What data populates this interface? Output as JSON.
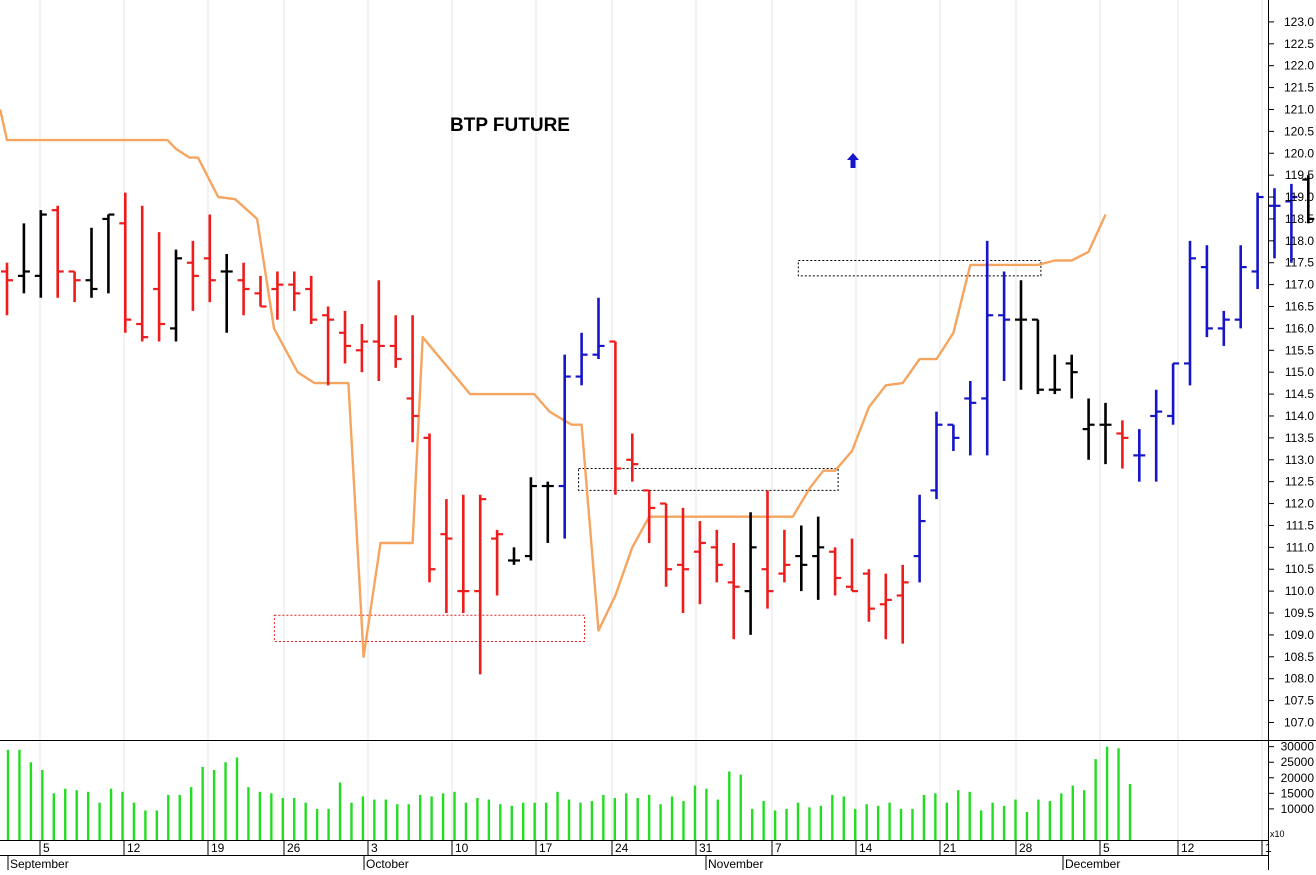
{
  "chart_data": {
    "type": "ohlc",
    "title": "BTP FUTURE",
    "price_axis": {
      "ylim": [
        106.6,
        123.5
      ],
      "ticks": [
        107.0,
        107.5,
        108.0,
        108.5,
        109.0,
        109.5,
        110.0,
        110.5,
        111.0,
        111.5,
        112.0,
        112.5,
        113.0,
        113.5,
        114.0,
        114.5,
        115.0,
        115.5,
        116.0,
        116.5,
        117.0,
        117.5,
        118.0,
        118.5,
        119.0,
        119.5,
        120.0,
        120.5,
        121.0,
        121.5,
        122.0,
        122.5,
        123.0
      ],
      "tick_labels": [
        "107.0",
        "107.5",
        "108.0",
        "108.5",
        "109.0",
        "109.5",
        "110.0",
        "110.5",
        "111.0",
        "111.5",
        "112.0",
        "112.5",
        "113.0",
        "113.5",
        "114.0",
        "114.5",
        "115.0",
        "115.5",
        "116.0",
        "116.5",
        "117.0",
        "117.5",
        "118.0",
        "118.5",
        "119.0",
        "119.5",
        "120.0",
        "120.5",
        "121.0",
        "121.5",
        "122.0",
        "122.5",
        "123.0"
      ]
    },
    "volume_axis": {
      "ylim": [
        0,
        31500
      ],
      "ticks": [
        10000,
        15000,
        20000,
        25000,
        30000
      ],
      "tick_labels": [
        "10000",
        "15000",
        "20000",
        "25000",
        "30000"
      ],
      "multiplier_label": "x10"
    },
    "date_axis": {
      "day_labels": [
        "5",
        "12",
        "19",
        "26",
        "3",
        "10",
        "17",
        "24",
        "31",
        "7",
        "14",
        "21",
        "28",
        "5",
        "12",
        "1"
      ],
      "month_labels": [
        "September",
        "October",
        "November",
        "December"
      ]
    },
    "colors": {
      "down": "#ee1c1c",
      "up": "#1616c8",
      "neutral": "#000000",
      "trailing_line": "#f5a560",
      "volume": "#22dd22",
      "support_box_red": "#ee1c1c",
      "support_box_black": "#000000"
    },
    "signal": {
      "type": "up-arrow",
      "bar_index": 49,
      "price": 119.8,
      "color": "#1616c8"
    },
    "boxes": [
      {
        "color": "red",
        "start_index": 16,
        "end_index": 34,
        "low": 108.85,
        "high": 109.45
      },
      {
        "color": "black",
        "start_index": 34,
        "end_index": 49,
        "low": 112.3,
        "high": 112.8
      },
      {
        "color": "black",
        "start_index": 47,
        "end_index": 61,
        "low": 117.2,
        "high": 117.55
      }
    ],
    "bars": [
      {
        "o": 117.3,
        "h": 117.5,
        "l": 116.3,
        "c": 117.1,
        "color": "red"
      },
      {
        "o": 117.2,
        "h": 118.4,
        "l": 116.8,
        "c": 117.3,
        "color": "black"
      },
      {
        "o": 117.2,
        "h": 118.7,
        "l": 116.7,
        "c": 118.6,
        "color": "black"
      },
      {
        "o": 118.7,
        "h": 118.8,
        "l": 116.7,
        "c": 117.3,
        "color": "red"
      },
      {
        "o": 117.3,
        "h": 117.3,
        "l": 116.6,
        "c": 117.1,
        "color": "red"
      },
      {
        "o": 117.1,
        "h": 118.3,
        "l": 116.7,
        "c": 116.9,
        "color": "black"
      },
      {
        "o": 118.5,
        "h": 118.6,
        "l": 116.8,
        "c": 118.6,
        "color": "black"
      },
      {
        "o": 118.4,
        "h": 119.1,
        "l": 115.9,
        "c": 116.2,
        "color": "red"
      },
      {
        "o": 116.1,
        "h": 118.8,
        "l": 115.7,
        "c": 115.8,
        "color": "red"
      },
      {
        "o": 116.9,
        "h": 118.2,
        "l": 115.7,
        "c": 116.1,
        "color": "red"
      },
      {
        "o": 116.0,
        "h": 117.8,
        "l": 115.7,
        "c": 117.6,
        "color": "black"
      },
      {
        "o": 117.5,
        "h": 118.0,
        "l": 116.4,
        "c": 117.2,
        "color": "red"
      },
      {
        "o": 117.6,
        "h": 118.6,
        "l": 116.6,
        "c": 117.1,
        "color": "red"
      },
      {
        "o": 117.3,
        "h": 117.7,
        "l": 115.9,
        "c": 117.3,
        "color": "black"
      },
      {
        "o": 117.1,
        "h": 117.5,
        "l": 116.3,
        "c": 116.9,
        "color": "red"
      },
      {
        "o": 116.8,
        "h": 117.2,
        "l": 116.5,
        "c": 116.5,
        "color": "red"
      },
      {
        "o": 116.9,
        "h": 117.3,
        "l": 116.2,
        "c": 117.0,
        "color": "red"
      },
      {
        "o": 117.0,
        "h": 117.3,
        "l": 116.4,
        "c": 116.8,
        "color": "red"
      },
      {
        "o": 116.9,
        "h": 117.2,
        "l": 116.1,
        "c": 116.2,
        "color": "red"
      },
      {
        "o": 116.3,
        "h": 116.5,
        "l": 114.7,
        "c": 116.2,
        "color": "red"
      },
      {
        "o": 115.9,
        "h": 116.4,
        "l": 115.2,
        "c": 115.6,
        "color": "red"
      },
      {
        "o": 115.5,
        "h": 116.1,
        "l": 115.0,
        "c": 115.7,
        "color": "red"
      },
      {
        "o": 115.7,
        "h": 117.1,
        "l": 114.8,
        "c": 115.6,
        "color": "red"
      },
      {
        "o": 115.6,
        "h": 116.3,
        "l": 115.1,
        "c": 115.3,
        "color": "red"
      },
      {
        "o": 114.4,
        "h": 116.3,
        "l": 113.4,
        "c": 114.0,
        "color": "red"
      },
      {
        "o": 113.5,
        "h": 113.6,
        "l": 110.2,
        "c": 110.5,
        "color": "red"
      },
      {
        "o": 111.3,
        "h": 112.1,
        "l": 109.5,
        "c": 111.2,
        "color": "red"
      },
      {
        "o": 110.0,
        "h": 112.2,
        "l": 109.5,
        "c": 110.0,
        "color": "red"
      },
      {
        "o": 110.0,
        "h": 112.2,
        "l": 108.1,
        "c": 112.1,
        "color": "red"
      },
      {
        "o": 111.2,
        "h": 111.4,
        "l": 109.9,
        "c": 111.3,
        "color": "red"
      },
      {
        "o": 110.7,
        "h": 111.0,
        "l": 110.6,
        "c": 110.7,
        "color": "black"
      },
      {
        "o": 110.8,
        "h": 112.6,
        "l": 110.7,
        "c": 112.4,
        "color": "black"
      },
      {
        "o": 112.4,
        "h": 112.5,
        "l": 111.1,
        "c": 112.4,
        "color": "black"
      },
      {
        "o": 112.4,
        "h": 115.4,
        "l": 111.2,
        "c": 114.9,
        "color": "blue"
      },
      {
        "o": 114.9,
        "h": 115.9,
        "l": 114.7,
        "c": 115.4,
        "color": "blue"
      },
      {
        "o": 115.4,
        "h": 116.7,
        "l": 115.3,
        "c": 115.6,
        "color": "blue"
      },
      {
        "o": 115.7,
        "h": 115.7,
        "l": 112.2,
        "c": 112.8,
        "color": "red"
      },
      {
        "o": 113.0,
        "h": 113.6,
        "l": 112.5,
        "c": 112.9,
        "color": "red"
      },
      {
        "o": 112.3,
        "h": 112.3,
        "l": 111.1,
        "c": 111.9,
        "color": "red"
      },
      {
        "o": 112.0,
        "h": 112.0,
        "l": 110.1,
        "c": 110.5,
        "color": "red"
      },
      {
        "o": 110.6,
        "h": 111.9,
        "l": 109.5,
        "c": 110.5,
        "color": "red"
      },
      {
        "o": 110.9,
        "h": 111.6,
        "l": 109.7,
        "c": 111.1,
        "color": "red"
      },
      {
        "o": 111.0,
        "h": 111.4,
        "l": 110.2,
        "c": 110.6,
        "color": "red"
      },
      {
        "o": 110.2,
        "h": 111.1,
        "l": 108.9,
        "c": 110.1,
        "color": "red"
      },
      {
        "o": 110.0,
        "h": 111.8,
        "l": 109.0,
        "c": 111.0,
        "color": "black"
      },
      {
        "o": 110.5,
        "h": 112.3,
        "l": 109.6,
        "c": 110.0,
        "color": "red"
      },
      {
        "o": 110.4,
        "h": 111.4,
        "l": 110.2,
        "c": 110.6,
        "color": "red"
      },
      {
        "o": 110.8,
        "h": 111.5,
        "l": 110.0,
        "c": 110.6,
        "color": "black"
      },
      {
        "o": 110.8,
        "h": 111.7,
        "l": 109.8,
        "c": 111.0,
        "color": "black"
      },
      {
        "o": 110.9,
        "h": 111.0,
        "l": 109.9,
        "c": 110.3,
        "color": "red"
      },
      {
        "o": 110.1,
        "h": 111.2,
        "l": 110.0,
        "c": 110.0,
        "color": "red"
      },
      {
        "o": 110.4,
        "h": 110.5,
        "l": 109.3,
        "c": 109.6,
        "color": "red"
      },
      {
        "o": 109.7,
        "h": 110.4,
        "l": 108.9,
        "c": 109.8,
        "color": "red"
      },
      {
        "o": 109.9,
        "h": 110.6,
        "l": 108.8,
        "c": 110.2,
        "color": "red"
      },
      {
        "o": 110.8,
        "h": 112.2,
        "l": 110.2,
        "c": 111.6,
        "color": "blue"
      }
    ],
    "bars2": [
      {
        "o": 112.3,
        "h": 114.1,
        "l": 112.1,
        "c": 113.8,
        "color": "blue"
      },
      {
        "o": 113.8,
        "h": 113.8,
        "l": 113.2,
        "c": 113.5,
        "color": "blue"
      },
      {
        "o": 114.4,
        "h": 114.8,
        "l": 113.1,
        "c": 114.3,
        "color": "blue"
      },
      {
        "o": 114.4,
        "h": 118.0,
        "l": 113.1,
        "c": 116.3,
        "color": "blue"
      },
      {
        "o": 116.3,
        "h": 117.3,
        "l": 114.8,
        "c": 116.2,
        "color": "blue"
      }
    ]
  }
}
